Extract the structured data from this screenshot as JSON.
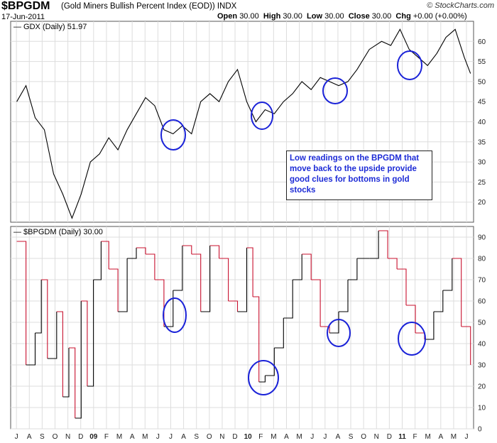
{
  "header": {
    "symbol": "$BPGDM",
    "description": "(Gold Miners Bullish Percent Index (EOD))",
    "exchange": "INDX",
    "date": "17-Jun-2011",
    "open_label": "Open",
    "open": "30.00",
    "high_label": "High",
    "high": "30.00",
    "low_label": "Low",
    "low": "30.00",
    "close_label": "Close",
    "close": "30.00",
    "chg_label": "Chg",
    "chg": "+0.00 (+0.00%)",
    "brand": "© StockCharts.com"
  },
  "annotation": "Low readings on the BPGDM that move back to the upside provide good clues for bottoms in gold stocks",
  "colors": {
    "price": "#000000",
    "bpi_down": "#c8102e",
    "bpi_up": "#000000",
    "circle": "#1a22d8",
    "grid": "#dddddd",
    "text_blue": "#1d2bd6"
  },
  "chart_data": [
    {
      "type": "line",
      "title": "GDX (Daily) 51.97",
      "ylim": [
        15,
        65
      ],
      "y_ticks": [
        20,
        25,
        30,
        35,
        40,
        45,
        50,
        55,
        60
      ],
      "grid": true,
      "series": [
        {
          "name": "GDX (Daily) 51.97",
          "x": [
            2008.5,
            2008.56,
            2008.62,
            2008.68,
            2008.74,
            2008.8,
            2008.86,
            2008.92,
            2008.98,
            2009.04,
            2009.1,
            2009.16,
            2009.22,
            2009.28,
            2009.34,
            2009.4,
            2009.46,
            2009.52,
            2009.58,
            2009.64,
            2009.7,
            2009.76,
            2009.82,
            2009.88,
            2009.94,
            2010.0,
            2010.06,
            2010.12,
            2010.18,
            2010.24,
            2010.3,
            2010.36,
            2010.42,
            2010.48,
            2010.54,
            2010.6,
            2010.66,
            2010.72,
            2010.8,
            2010.88,
            2010.94,
            2011.0,
            2011.06,
            2011.12,
            2011.18,
            2011.24,
            2011.3,
            2011.36,
            2011.42,
            2011.46
          ],
          "values": [
            45,
            49,
            41,
            38,
            27,
            22,
            16,
            22,
            30,
            32,
            36,
            33,
            38,
            42,
            46,
            44,
            38,
            37,
            39,
            37,
            45,
            47,
            45,
            50,
            53,
            45,
            40,
            43,
            42,
            45,
            47,
            50,
            48,
            51,
            50,
            49,
            50,
            53,
            58,
            60,
            59,
            63,
            58,
            56,
            54,
            57,
            61,
            63,
            56,
            52
          ]
        }
      ]
    },
    {
      "type": "line",
      "title": "$BPGDM (Daily) 30.00",
      "ylim": [
        0,
        95
      ],
      "y_ticks": [
        0,
        10,
        20,
        30,
        40,
        50,
        60,
        70,
        80,
        90
      ],
      "grid": true,
      "x_ticks": [
        "J",
        "A",
        "S",
        "O",
        "N",
        "D",
        "09",
        "F",
        "M",
        "A",
        "M",
        "J",
        "J",
        "A",
        "S",
        "O",
        "N",
        "D",
        "10",
        "F",
        "M",
        "A",
        "M",
        "J",
        "J",
        "A",
        "S",
        "O",
        "N",
        "D",
        "11",
        "F",
        "M",
        "A",
        "M",
        "J"
      ],
      "series": [
        {
          "name": "$BPGDM (Daily) 30.00",
          "x": [
            2008.5,
            2008.56,
            2008.62,
            2008.66,
            2008.7,
            2008.76,
            2008.8,
            2008.84,
            2008.88,
            2008.92,
            2008.96,
            2009.0,
            2009.05,
            2009.1,
            2009.16,
            2009.22,
            2009.28,
            2009.34,
            2009.4,
            2009.46,
            2009.52,
            2009.58,
            2009.64,
            2009.7,
            2009.76,
            2009.82,
            2009.88,
            2009.94,
            2010.0,
            2010.04,
            2010.08,
            2010.12,
            2010.18,
            2010.24,
            2010.3,
            2010.36,
            2010.42,
            2010.48,
            2010.54,
            2010.6,
            2010.66,
            2010.72,
            2010.8,
            2010.86,
            2010.92,
            2010.98,
            2011.04,
            2011.1,
            2011.16,
            2011.22,
            2011.28,
            2011.34,
            2011.4,
            2011.46
          ],
          "values": [
            88,
            30,
            45,
            70,
            33,
            55,
            15,
            38,
            5,
            60,
            20,
            70,
            88,
            75,
            55,
            80,
            85,
            82,
            70,
            48,
            65,
            86,
            82,
            55,
            86,
            80,
            60,
            55,
            85,
            62,
            22,
            25,
            38,
            52,
            70,
            82,
            70,
            48,
            45,
            55,
            70,
            80,
            80,
            93,
            80,
            75,
            58,
            45,
            42,
            55,
            65,
            80,
            48,
            30
          ]
        }
      ]
    }
  ]
}
